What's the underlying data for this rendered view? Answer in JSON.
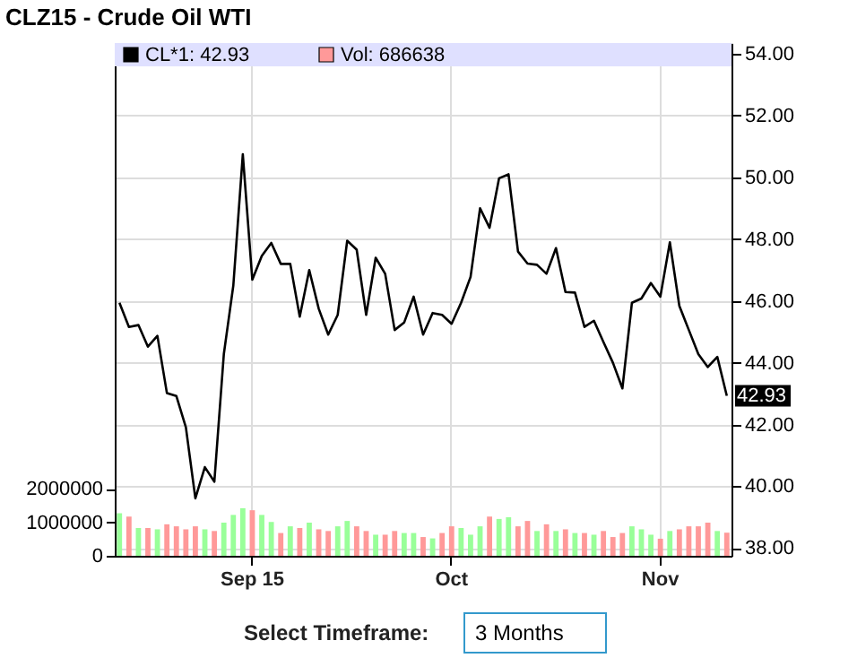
{
  "chart_data": {
    "type": "line",
    "title": "CLZ15 - Crude Oil WTI",
    "categories": [
      null,
      null,
      null,
      null,
      null,
      null,
      null,
      null,
      null,
      null,
      null,
      null,
      null,
      null,
      "Sep 15",
      null,
      null,
      null,
      null,
      null,
      null,
      null,
      null,
      null,
      null,
      null,
      null,
      null,
      null,
      null,
      null,
      null,
      null,
      null,
      null,
      "Oct",
      null,
      null,
      null,
      null,
      null,
      null,
      null,
      null,
      null,
      null,
      null,
      null,
      null,
      null,
      null,
      null,
      null,
      null,
      null,
      null,
      null,
      "Nov",
      null,
      null,
      null,
      null,
      null,
      null,
      null
    ],
    "series": [
      {
        "name": "CL*1: 42.93",
        "color": "#000000",
        "values": [
          45.94,
          45.16,
          45.22,
          44.52,
          44.87,
          43.02,
          42.92,
          41.91,
          39.61,
          40.62,
          40.15,
          44.28,
          46.5,
          50.75,
          46.69,
          47.46,
          47.88,
          47.2,
          47.2,
          45.49,
          47.0,
          45.75,
          44.91,
          45.55,
          47.95,
          47.66,
          45.55,
          47.4,
          46.88,
          45.06,
          45.3,
          46.14,
          44.91,
          45.61,
          45.55,
          45.26,
          45.94,
          46.78,
          49.0,
          48.37,
          49.97,
          50.1,
          47.6,
          47.21,
          47.17,
          46.88,
          47.71,
          46.29,
          46.27,
          45.16,
          45.36,
          44.67,
          44.0,
          43.17,
          45.94,
          46.08,
          46.58,
          46.14,
          47.9,
          45.84,
          45.06,
          44.28,
          43.86,
          44.19,
          42.93
        ]
      },
      {
        "name": "Vol: 686638",
        "type": "bar",
        "axis": "y2",
        "color": "#ff9999",
        "values": [
          1270000,
          1170000,
          830000,
          830000,
          790000,
          940000,
          880000,
          790000,
          880000,
          790000,
          740000,
          990000,
          1220000,
          1420000,
          1360000,
          1220000,
          1010000,
          680000,
          880000,
          830000,
          990000,
          790000,
          740000,
          880000,
          1040000,
          880000,
          740000,
          630000,
          630000,
          740000,
          680000,
          680000,
          560000,
          520000,
          680000,
          880000,
          830000,
          630000,
          880000,
          1170000,
          1100000,
          1150000,
          880000,
          1040000,
          740000,
          940000,
          740000,
          790000,
          680000,
          680000,
          630000,
          740000,
          560000,
          680000,
          880000,
          790000,
          630000,
          510000,
          740000,
          790000,
          880000,
          880000,
          990000,
          740000,
          690000
        ],
        "colors": [
          "#99ff99",
          "#ff9999",
          "#99ff99",
          "#ff9999",
          "#99ff99",
          "#ff9999",
          "#ff9999",
          "#ff9999",
          "#ff9999",
          "#99ff99",
          "#ff9999",
          "#99ff99",
          "#99ff99",
          "#99ff99",
          "#ff9999",
          "#99ff99",
          "#99ff99",
          "#ff9999",
          "#99ff99",
          "#ff9999",
          "#99ff99",
          "#ff9999",
          "#ff9999",
          "#99ff99",
          "#99ff99",
          "#ff9999",
          "#ff9999",
          "#99ff99",
          "#ff9999",
          "#ff9999",
          "#99ff99",
          "#99ff99",
          "#ff9999",
          "#99ff99",
          "#ff9999",
          "#ff9999",
          "#99ff99",
          "#99ff99",
          "#99ff99",
          "#ff9999",
          "#99ff99",
          "#99ff99",
          "#ff9999",
          "#ff9999",
          "#99ff99",
          "#ff9999",
          "#99ff99",
          "#ff9999",
          "#99ff99",
          "#ff9999",
          "#99ff99",
          "#ff9999",
          "#ff9999",
          "#ff9999",
          "#99ff99",
          "#99ff99",
          "#99ff99",
          "#ff9999",
          "#99ff99",
          "#ff9999",
          "#ff9999",
          "#ff9999",
          "#ff9999",
          "#99ff99",
          "#ff9999"
        ]
      }
    ],
    "ylim": [
      37.75,
      54.35
    ],
    "yticks": [
      {
        "value": 38,
        "label": "38.00"
      },
      {
        "value": 40,
        "label": "40.00"
      },
      {
        "value": 42,
        "label": "42.00"
      },
      {
        "value": 44,
        "label": "44.00"
      },
      {
        "value": 46,
        "label": "46.00"
      },
      {
        "value": 48,
        "label": "48.00"
      },
      {
        "value": 50,
        "label": "50.00"
      },
      {
        "value": 52,
        "label": "52.00"
      },
      {
        "value": 54,
        "label": "54.00"
      }
    ],
    "y2lim": [
      0,
      15300000
    ],
    "y2ticks": [
      0,
      1000000,
      2000000
    ],
    "grid": true,
    "legend": "top left",
    "annotations": [
      "42.93",
      "Select Timeframe:",
      "3 Months"
    ]
  }
}
